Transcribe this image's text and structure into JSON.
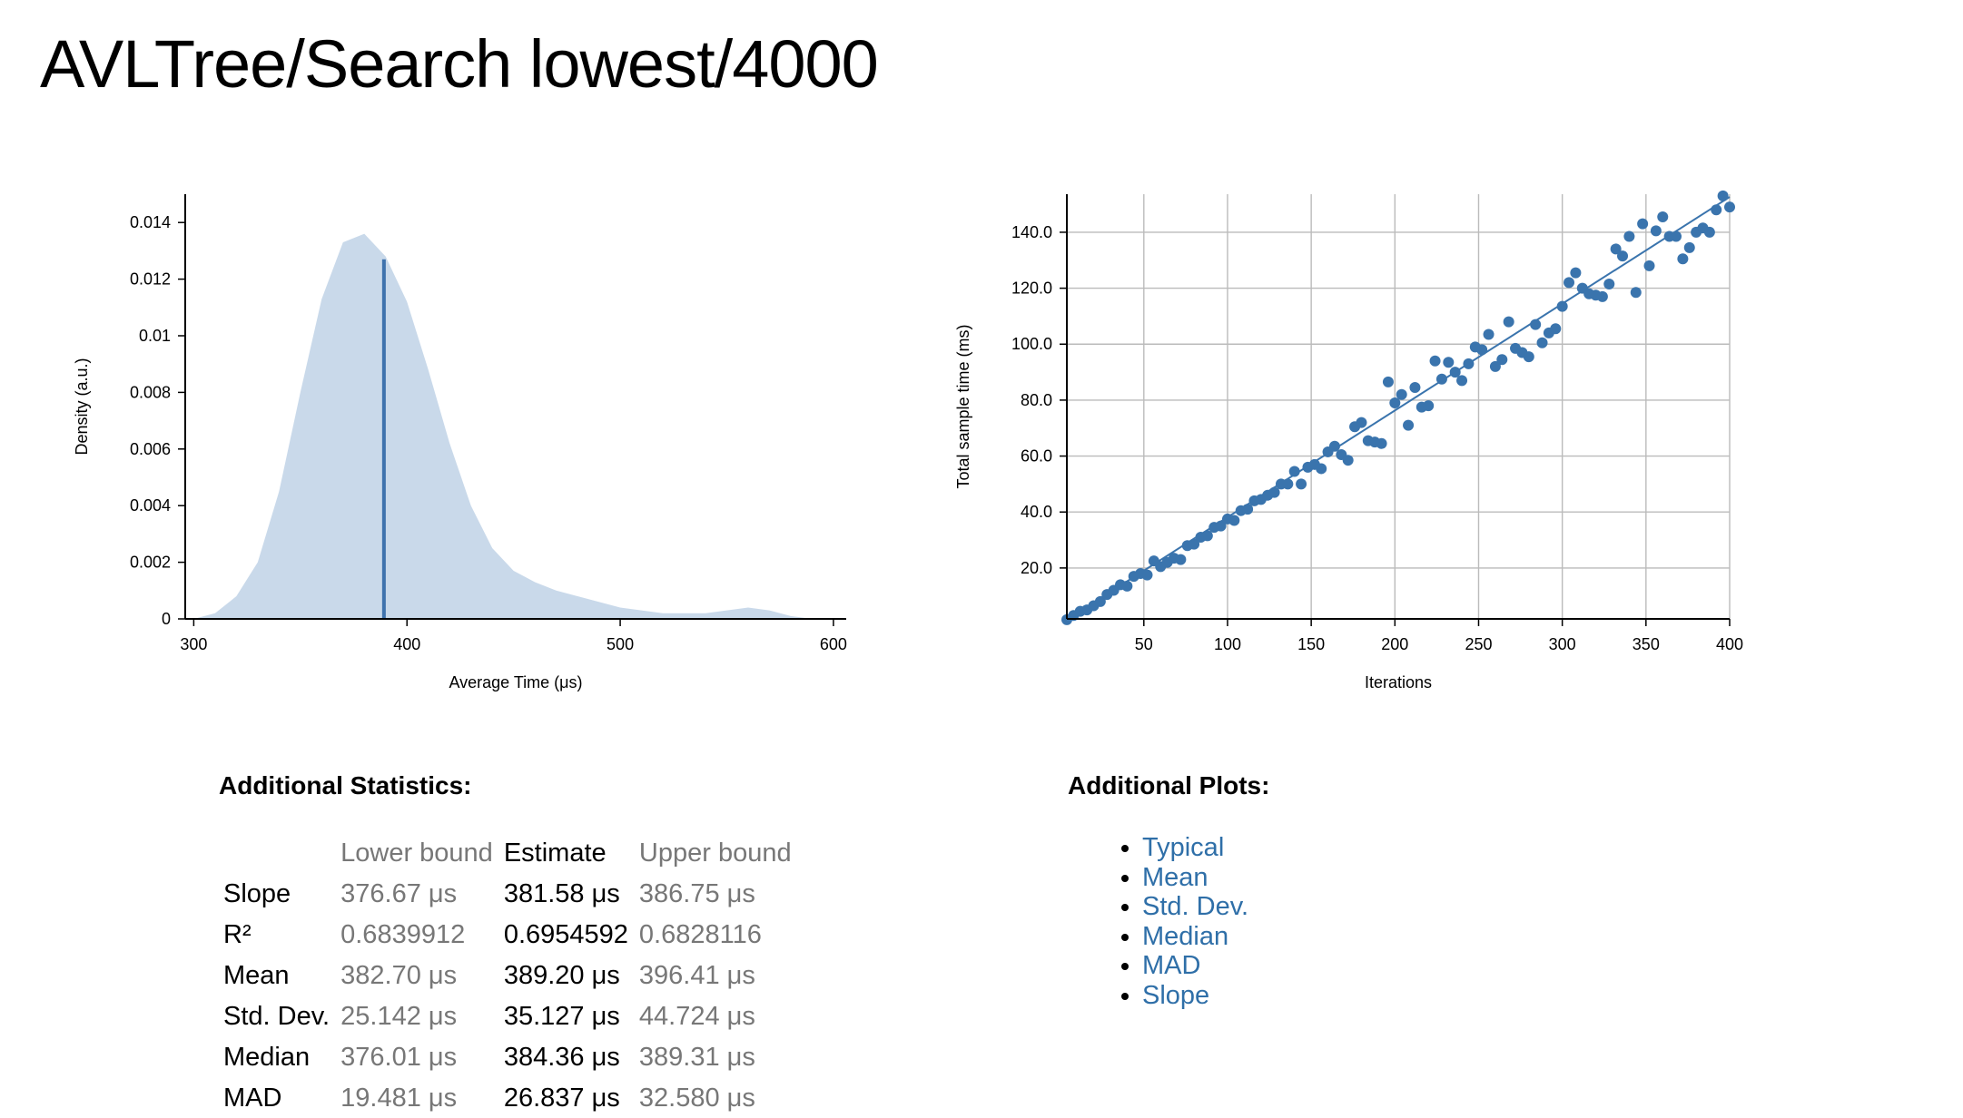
{
  "header": {
    "title": "AVLTree/Search lowest/4000"
  },
  "chart_data": [
    {
      "type": "area",
      "x_label": "Average Time (μs)",
      "y_label": "Density (a.u.)",
      "color": "#c9d9ea",
      "x": [
        300,
        310,
        320,
        330,
        340,
        350,
        360,
        370,
        380,
        390,
        400,
        410,
        420,
        430,
        440,
        450,
        460,
        470,
        480,
        490,
        500,
        510,
        520,
        530,
        540,
        550,
        560,
        570,
        580,
        590
      ],
      "values": [
        0,
        0.0002,
        0.0008,
        0.002,
        0.0045,
        0.008,
        0.0113,
        0.0133,
        0.0136,
        0.0128,
        0.0112,
        0.0088,
        0.0062,
        0.004,
        0.0025,
        0.0017,
        0.0013,
        0.001,
        0.0008,
        0.0006,
        0.0004,
        0.0003,
        0.0002,
        0.0002,
        0.0002,
        0.0003,
        0.0004,
        0.0003,
        0.0001,
        0
      ],
      "mean_line": {
        "x": 389.2,
        "y": 0.0127,
        "color": "#3f73ad"
      },
      "xlim": [
        296,
        606
      ],
      "xticks": [
        300,
        400,
        500,
        600
      ],
      "ylim": [
        0,
        0.015
      ],
      "yticks": [
        0,
        0.002,
        0.004,
        0.006,
        0.008,
        0.01,
        0.012,
        0.014
      ]
    },
    {
      "type": "scatter",
      "x_label": "Iterations",
      "y_label": "Total sample time (ms)",
      "color": "#3a74ad",
      "grid": true,
      "x": [
        4,
        8,
        12,
        16,
        20,
        24,
        28,
        32,
        36,
        40,
        44,
        48,
        52,
        56,
        60,
        64,
        68,
        72,
        76,
        80,
        84,
        88,
        92,
        96,
        100,
        104,
        108,
        112,
        116,
        120,
        124,
        128,
        132,
        136,
        140,
        144,
        148,
        152,
        156,
        160,
        164,
        168,
        172,
        176,
        180,
        184,
        188,
        192,
        196,
        200,
        204,
        208,
        212,
        216,
        220,
        224,
        228,
        232,
        236,
        240,
        244,
        248,
        252,
        256,
        260,
        264,
        268,
        272,
        276,
        280,
        284,
        288,
        292,
        296,
        300,
        304,
        308,
        312,
        316,
        320,
        324,
        328,
        332,
        336,
        340,
        344,
        348,
        352,
        356,
        360,
        364,
        368,
        372,
        376,
        380,
        384,
        388,
        392,
        396,
        400
      ],
      "values": [
        1.5,
        3,
        4.5,
        5,
        6.5,
        8,
        10.5,
        12,
        14,
        13.5,
        17,
        18,
        17.5,
        22.5,
        20.5,
        22,
        23.5,
        23,
        28,
        28.5,
        31,
        31.5,
        34.5,
        35,
        37.5,
        37,
        40.5,
        41,
        44,
        44.5,
        46,
        47,
        50,
        50,
        54.5,
        50,
        56,
        57,
        55.5,
        61.5,
        63.5,
        60.5,
        58.5,
        70.5,
        72,
        65.5,
        65,
        64.5,
        86.5,
        79,
        82,
        71,
        84.5,
        77.5,
        78,
        94,
        87.5,
        93.5,
        90,
        87,
        93,
        99,
        98,
        103.5,
        92,
        94.5,
        108,
        98.5,
        97,
        95.5,
        107,
        100.5,
        104,
        105.5,
        113.5,
        122,
        125.5,
        120,
        118,
        117.5,
        117,
        121.5,
        134,
        131.5,
        138.5,
        118.5,
        143,
        128,
        140.5,
        145.5,
        138.5,
        138.5,
        130.5,
        134.5,
        140,
        141.5,
        140,
        148,
        153,
        149
      ],
      "regression_line": {
        "x": [
          4,
          400
        ],
        "y": [
          1.5,
          152.6
        ]
      },
      "xlim": [
        4,
        400
      ],
      "xticks": [
        50,
        100,
        150,
        200,
        250,
        300,
        350,
        400
      ],
      "ylim": [
        1.8,
        153.6
      ],
      "yticks": [
        {
          "value": 20,
          "label": "20.0"
        },
        {
          "value": 40,
          "label": "40.0"
        },
        {
          "value": 60,
          "label": "60.0"
        },
        {
          "value": 80,
          "label": "80.0"
        },
        {
          "value": 100,
          "label": "100.0"
        },
        {
          "value": 120,
          "label": "120.0"
        },
        {
          "value": 140,
          "label": "140.0"
        }
      ]
    }
  ],
  "statistics": {
    "title": "Additional Statistics:",
    "columns": [
      "Lower bound",
      "Estimate",
      "Upper bound"
    ],
    "rows": [
      [
        "Slope",
        "376.67 μs",
        "381.58 μs",
        "386.75 μs"
      ],
      [
        "R²",
        "0.6839912",
        "0.6954592",
        "0.6828116"
      ],
      [
        "Mean",
        "382.70 μs",
        "389.20 μs",
        "396.41 μs"
      ],
      [
        "Std. Dev.",
        "25.142 μs",
        "35.127 μs",
        "44.724 μs"
      ],
      [
        "Median",
        "376.01 μs",
        "384.36 μs",
        "389.31 μs"
      ],
      [
        "MAD",
        "19.481 μs",
        "26.837 μs",
        "32.580 μs"
      ]
    ]
  },
  "plots": {
    "title": "Additional Plots:",
    "items": [
      "Typical",
      "Mean",
      "Std. Dev.",
      "Median",
      "MAD",
      "Slope"
    ]
  }
}
